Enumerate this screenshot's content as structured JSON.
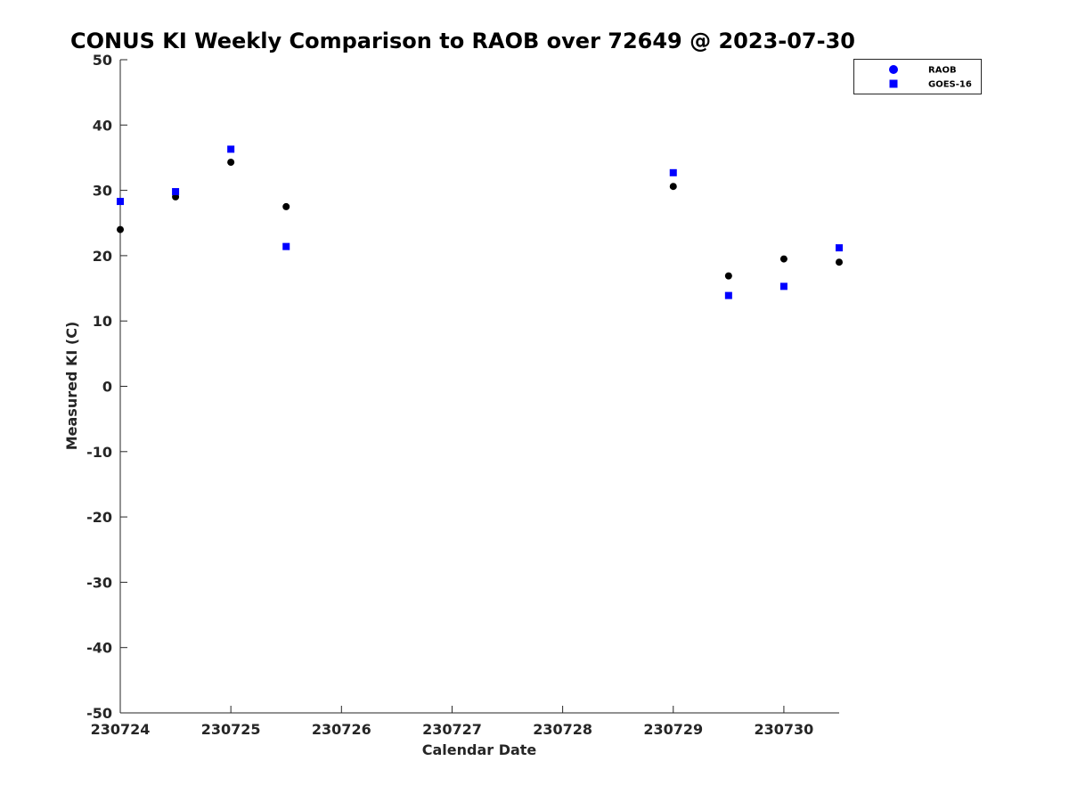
{
  "chart_data": {
    "type": "scatter",
    "title": "CONUS KI Weekly Comparison to RAOB over 72649 @ 2023-07-30",
    "xlabel": "Calendar Date",
    "ylabel": "Measured KI (C)",
    "xlim": [
      0,
      6.5
    ],
    "ylim": [
      -50,
      50
    ],
    "x_ticks": [
      0,
      1,
      2,
      3,
      4,
      5,
      6
    ],
    "x_tick_labels": [
      "230724",
      "230725",
      "230726",
      "230727",
      "230728",
      "230729",
      "230730"
    ],
    "y_ticks": [
      50,
      40,
      30,
      20,
      10,
      0,
      -10,
      -20,
      -30,
      -40,
      -50
    ],
    "y_tick_labels": [
      "50",
      "40",
      "30",
      "20",
      "10",
      "0",
      "-10",
      "-20",
      "-30",
      "-40",
      "-50"
    ],
    "grid": false,
    "legend_position": "top-right",
    "series": [
      {
        "name": "RAOB",
        "marker": "circle",
        "color": "#000000",
        "legend_color": "#0000ff",
        "x": [
          0,
          0.5,
          1,
          1.5,
          5,
          5.5,
          6,
          6.5
        ],
        "y": [
          24.0,
          29.0,
          34.3,
          27.5,
          30.6,
          16.9,
          19.5,
          19.0
        ]
      },
      {
        "name": "GOES-16",
        "marker": "square",
        "color": "#0000ff",
        "legend_color": "#0000ff",
        "x": [
          0,
          0.5,
          1,
          1.5,
          5,
          5.5,
          6,
          6.5
        ],
        "y": [
          28.3,
          29.8,
          36.3,
          21.4,
          32.7,
          13.9,
          15.3,
          21.2
        ]
      }
    ]
  }
}
